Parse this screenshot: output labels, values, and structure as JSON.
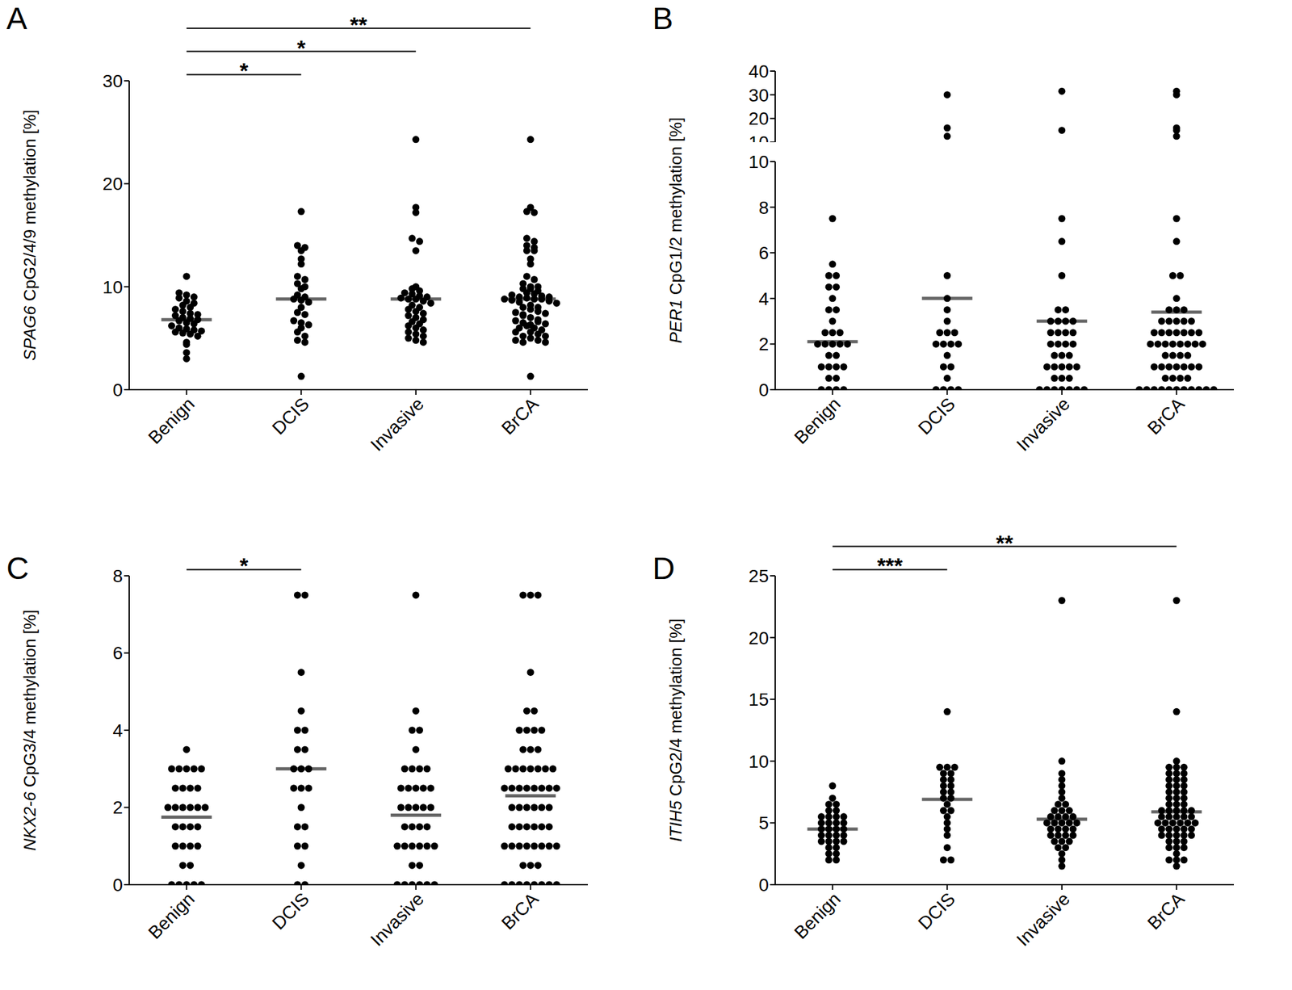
{
  "chart_data": [
    {
      "type": "scatter",
      "title": "A",
      "y_label": "SPAG6 CpG2/4/9 methylation [%]",
      "categories": [
        "Benign",
        "DCIS",
        "Invasive",
        "BrCA"
      ],
      "color": "#000000",
      "grid": false,
      "ylim": [
        0,
        30
      ],
      "yticks": [
        0,
        10,
        20,
        30
      ],
      "values": [
        [
          11.0,
          9.4,
          9.2,
          9.0,
          8.9,
          8.6,
          8.4,
          8.2,
          8.0,
          7.8,
          7.6,
          7.4,
          7.3,
          7.2,
          7.0,
          6.9,
          6.8,
          6.7,
          6.5,
          6.4,
          6.2,
          6.0,
          5.9,
          5.8,
          5.7,
          5.6,
          5.5,
          5.4,
          5.2,
          4.6,
          4.4,
          3.6,
          3.0
        ],
        [
          17.3,
          14.0,
          13.8,
          13.5,
          12.7,
          12.2,
          11.0,
          10.7,
          10.3,
          10.0,
          9.8,
          9.2,
          9.0,
          8.8,
          8.7,
          8.5,
          8.0,
          7.5,
          7.3,
          6.7,
          6.5,
          6.3,
          6.0,
          5.6,
          5.2,
          4.8,
          4.6,
          1.3
        ],
        [
          24.3,
          17.7,
          17.2,
          14.7,
          14.4,
          13.5,
          10.0,
          9.8,
          9.6,
          9.4,
          9.3,
          9.1,
          9.0,
          8.9,
          8.8,
          8.8,
          8.6,
          8.4,
          8.2,
          8.0,
          7.8,
          7.6,
          7.4,
          7.2,
          7.0,
          6.8,
          6.6,
          6.4,
          6.2,
          6.0,
          5.8,
          5.6,
          5.4,
          5.2,
          5.0,
          4.8,
          4.6
        ],
        [
          17.3,
          14.0,
          13.8,
          13.5,
          12.7,
          12.2,
          11.0,
          10.7,
          10.3,
          10.0,
          9.8,
          9.2,
          9.0,
          8.8,
          8.7,
          8.5,
          8.0,
          7.5,
          7.3,
          6.7,
          6.5,
          6.3,
          6.0,
          5.6,
          5.2,
          4.8,
          4.6,
          1.3,
          24.3,
          17.7,
          17.2,
          14.7,
          14.4,
          13.5,
          10.0,
          9.8,
          9.6,
          9.4,
          9.3,
          9.1,
          9.0,
          8.9,
          8.8,
          8.8,
          8.6,
          8.4,
          8.2,
          8.0,
          7.8,
          7.6,
          7.4,
          7.2,
          7.0,
          6.8,
          6.6,
          6.4,
          6.2,
          6.0,
          5.8,
          5.6,
          5.4,
          5.2,
          5.0,
          4.8,
          4.6
        ]
      ],
      "medians": [
        6.8,
        8.8,
        8.8,
        8.8
      ],
      "significance": [
        {
          "from": "Benign",
          "to": "DCIS",
          "label": "*"
        },
        {
          "from": "Benign",
          "to": "Invasive",
          "label": "*"
        },
        {
          "from": "Benign",
          "to": "BrCA",
          "label": "**"
        }
      ]
    },
    {
      "type": "scatter",
      "title": "B",
      "y_label": "PER1 CpG1/2 methylation [%]",
      "categories": [
        "Benign",
        "DCIS",
        "Invasive",
        "BrCA"
      ],
      "color": "#000000",
      "grid": false,
      "ylim": [
        0,
        40
      ],
      "yticks": [
        0,
        2,
        4,
        6,
        8,
        10,
        20,
        30,
        40
      ],
      "y_break": 10,
      "values": [
        [
          7.5,
          5.5,
          5,
          5,
          4.5,
          4.5,
          4,
          3.5,
          3.5,
          3,
          2.5,
          2.5,
          2.5,
          2,
          2,
          2,
          2,
          2,
          1.5,
          1.5,
          1,
          1,
          1,
          1,
          0.5,
          0.5,
          0,
          0,
          0,
          0
        ],
        [
          30,
          16,
          12.5,
          5,
          4,
          3.5,
          3,
          2.5,
          2.5,
          2.5,
          2,
          2,
          2,
          2,
          1.5,
          1,
          1,
          0.5,
          0,
          0,
          0,
          0
        ],
        [
          31.5,
          15,
          7.5,
          6.5,
          5,
          3.5,
          3.5,
          3,
          3,
          3,
          3,
          2.5,
          2.5,
          2.5,
          2.5,
          2,
          2,
          2,
          2,
          1.5,
          1.5,
          1.5,
          1,
          1,
          1,
          1,
          1,
          0.5,
          0.5,
          0.5,
          0,
          0,
          0,
          0,
          0,
          0,
          0
        ],
        [
          30,
          16,
          12.5,
          5,
          4,
          3.5,
          3,
          2.5,
          2.5,
          2.5,
          2,
          2,
          2,
          2,
          1.5,
          1,
          1,
          0.5,
          0,
          0,
          0,
          0,
          31.5,
          15,
          7.5,
          6.5,
          5,
          3.5,
          3.5,
          3,
          3,
          3,
          3,
          2.5,
          2.5,
          2.5,
          2.5,
          2,
          2,
          2,
          2,
          1.5,
          1.5,
          1.5,
          1,
          1,
          1,
          1,
          1,
          0.5,
          0.5,
          0.5,
          0,
          0,
          0,
          0,
          0,
          0,
          0
        ]
      ],
      "medians": [
        2.1,
        4.0,
        3.0,
        3.4
      ],
      "significance": []
    },
    {
      "type": "scatter",
      "title": "C",
      "y_label": "NKX2-6 CpG3/4 methylation [%]",
      "categories": [
        "Benign",
        "DCIS",
        "Invasive",
        "BrCA"
      ],
      "color": "#000000",
      "grid": false,
      "ylim": [
        0,
        8
      ],
      "yticks": [
        0,
        2,
        4,
        6,
        8
      ],
      "values": [
        [
          3.5,
          3,
          3,
          3,
          3,
          3,
          2.5,
          2.5,
          2.5,
          2.5,
          2,
          2,
          2,
          2,
          2,
          2,
          1.5,
          1.5,
          1.5,
          1.5,
          1,
          1,
          1,
          1,
          0.5,
          0.5,
          0,
          0,
          0,
          0,
          0
        ],
        [
          7.5,
          7.5,
          5.5,
          4.5,
          4,
          4,
          3.5,
          3.5,
          3,
          3,
          3,
          2.5,
          2.5,
          2.5,
          2,
          1.5,
          1.5,
          1,
          1,
          0.5,
          0,
          0
        ],
        [
          7.5,
          4.5,
          4,
          4,
          3.5,
          3,
          3,
          3,
          3,
          2.5,
          2.5,
          2.5,
          2.5,
          2.5,
          2,
          2,
          2,
          2,
          2,
          1.5,
          1.5,
          1.5,
          1.5,
          1,
          1,
          1,
          1,
          1,
          1,
          0.5,
          0.5,
          0,
          0,
          0,
          0,
          0,
          0
        ],
        [
          7.5,
          7.5,
          5.5,
          4.5,
          4,
          4,
          3.5,
          3.5,
          3,
          3,
          3,
          2.5,
          2.5,
          2.5,
          2,
          1.5,
          1.5,
          1,
          1,
          0.5,
          0,
          0,
          7.5,
          4.5,
          4,
          4,
          3.5,
          3,
          3,
          3,
          3,
          2.5,
          2.5,
          2.5,
          2.5,
          2.5,
          2,
          2,
          2,
          2,
          2,
          1.5,
          1.5,
          1.5,
          1.5,
          1,
          1,
          1,
          1,
          1,
          1,
          0.5,
          0.5,
          0,
          0,
          0,
          0,
          0,
          0
        ]
      ],
      "medians": [
        1.75,
        3.0,
        1.8,
        2.3
      ],
      "significance": [
        {
          "from": "Benign",
          "to": "DCIS",
          "label": "*"
        }
      ]
    },
    {
      "type": "scatter",
      "title": "D",
      "y_label": "ITIH5 CpG2/4 methylation [%]",
      "categories": [
        "Benign",
        "DCIS",
        "Invasive",
        "BrCA"
      ],
      "color": "#000000",
      "grid": false,
      "ylim": [
        0,
        25
      ],
      "yticks": [
        0,
        5,
        10,
        15,
        20,
        25
      ],
      "values": [
        [
          8.0,
          7.0,
          6.5,
          6.5,
          6.0,
          6.0,
          5.5,
          5.5,
          5.5,
          5.5,
          5.0,
          5.0,
          5.0,
          5.0,
          4.5,
          4.5,
          4.5,
          4.5,
          4.0,
          4.0,
          4.0,
          4.0,
          3.5,
          3.5,
          3.5,
          3.5,
          3.0,
          3.0,
          2.5,
          2.5,
          2.0,
          2.0
        ],
        [
          14.0,
          9.5,
          9.5,
          9.5,
          9.0,
          9.0,
          8.5,
          8.5,
          8.0,
          8.0,
          7.5,
          7.5,
          7.0,
          7.0,
          6.5,
          6.0,
          6.0,
          5.5,
          5.0,
          4.5,
          4.0,
          3.0,
          2.0,
          2.0
        ],
        [
          23,
          10,
          9,
          8.5,
          8,
          7.5,
          7,
          6.5,
          6.5,
          6,
          6,
          6,
          5.5,
          5.5,
          5.5,
          5.5,
          5,
          5,
          5,
          5,
          5,
          4.5,
          4.5,
          4.5,
          4.5,
          4,
          4,
          4,
          4,
          3.5,
          3.5,
          3.5,
          3,
          3,
          2.5,
          2,
          1.5
        ],
        [
          14.0,
          9.5,
          9.5,
          9.5,
          9.0,
          9.0,
          8.5,
          8.5,
          8.0,
          8.0,
          7.5,
          7.5,
          7.0,
          7.0,
          6.5,
          6.0,
          6.0,
          5.5,
          5.0,
          4.5,
          4.0,
          3.0,
          2.0,
          2.0,
          23,
          10,
          9,
          8.5,
          8,
          7.5,
          7,
          6.5,
          6.5,
          6,
          6,
          6,
          5.5,
          5.5,
          5.5,
          5.5,
          5,
          5,
          5,
          5,
          5,
          4.5,
          4.5,
          4.5,
          4.5,
          4,
          4,
          4,
          4,
          3.5,
          3.5,
          3.5,
          3,
          3,
          2.5,
          2,
          1.5
        ]
      ],
      "medians": [
        4.5,
        6.9,
        5.3,
        5.9
      ],
      "significance": [
        {
          "from": "Benign",
          "to": "DCIS",
          "label": "***"
        },
        {
          "from": "Benign",
          "to": "BrCA",
          "label": "**"
        }
      ]
    }
  ]
}
